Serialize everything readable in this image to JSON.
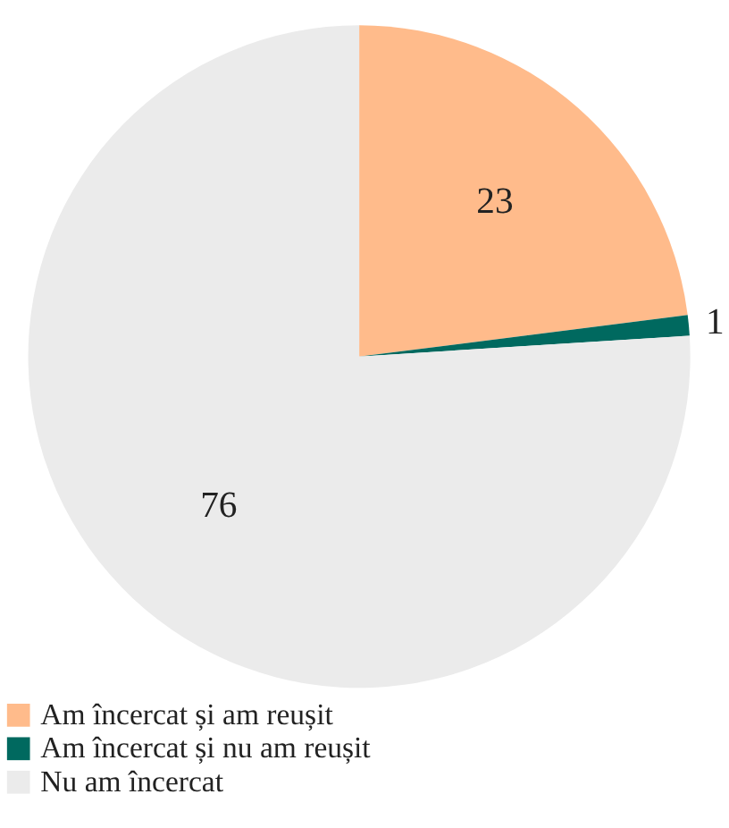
{
  "chart_data": {
    "type": "pie",
    "categories": [
      "Am încercat și am reușit",
      "Am încercat și nu am reușit",
      "Nu am încercat"
    ],
    "values": [
      23,
      1,
      76
    ],
    "colors": [
      "#ffbb8b",
      "#00695f",
      "#ebebeb"
    ],
    "data_labels": true,
    "legend": "bottom"
  }
}
